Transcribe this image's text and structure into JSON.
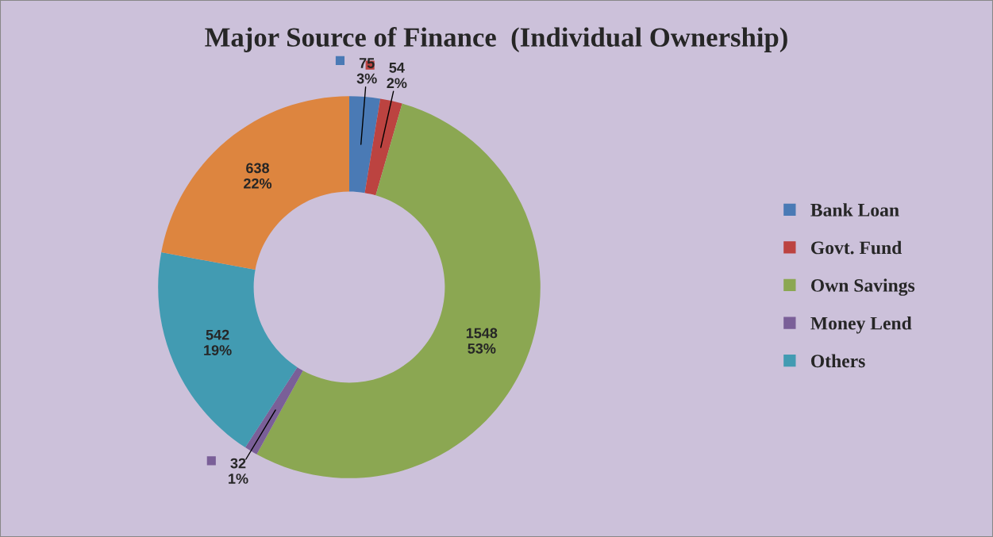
{
  "chart_data": {
    "type": "donut",
    "title": "Major Source of Finance  (Individual Ownership)",
    "categories": [
      "Bank Loan",
      "Govt. Fund",
      "Own Savings",
      "Money Lend",
      "Others",
      null
    ],
    "values": [
      75,
      54,
      1548,
      32,
      542,
      638
    ],
    "colors": [
      "#4a7ab5",
      "#bc4340",
      "#8ba752",
      "#7a5f98",
      "#429bb2",
      "#dd853f"
    ],
    "value_labels": [
      "75\n3%",
      "54\n2%",
      "1548\n53%",
      "32\n1%",
      "542\n19%",
      "638\n22%"
    ],
    "legend": "right"
  }
}
